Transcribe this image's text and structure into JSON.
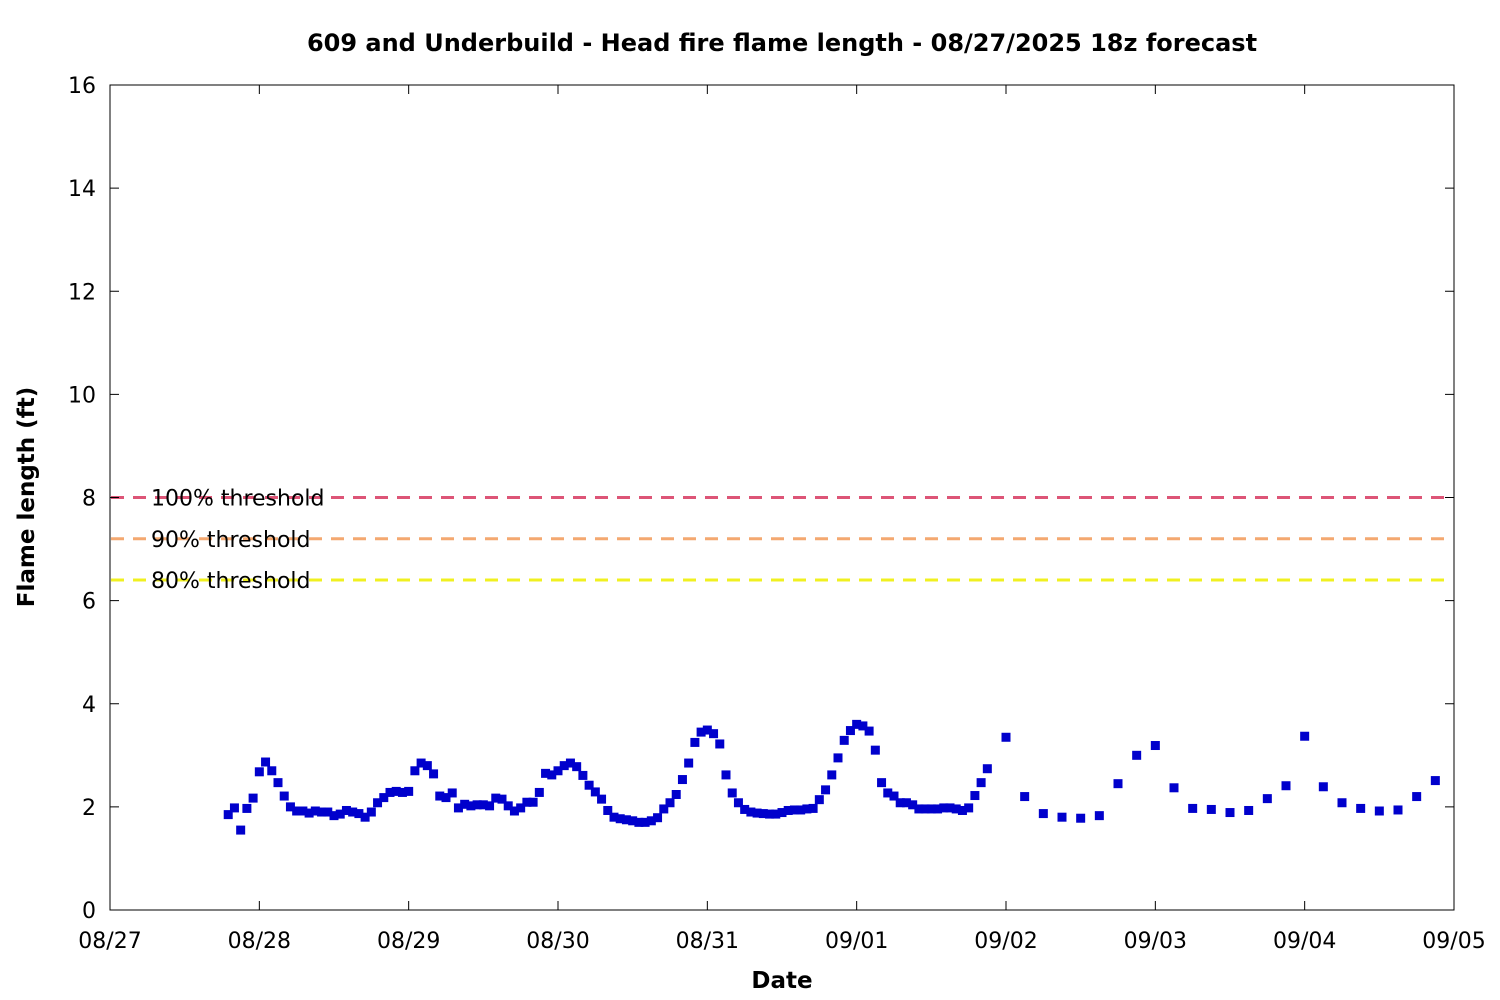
{
  "chart_data": {
    "type": "scatter",
    "title": "609 and Underbuild - Head fire flame length - 08/27/2025 18z forecast",
    "xlabel": "Date",
    "ylabel": "Flame length (ft)",
    "x_axis": {
      "kind": "date",
      "range": [
        "2025-08-27T00:00",
        "2025-09-05T00:00"
      ],
      "tick_labels": [
        "08/27",
        "08/28",
        "08/29",
        "08/30",
        "08/31",
        "09/01",
        "09/02",
        "09/03",
        "09/04",
        "09/05"
      ]
    },
    "ylim": [
      0,
      16
    ],
    "y_ticks": [
      0,
      2,
      4,
      6,
      8,
      10,
      12,
      14,
      16
    ],
    "grid": false,
    "marker_color": "#0000cc",
    "series": [
      {
        "points": [
          [
            "2025-08-27T19:00",
            1.85
          ],
          [
            "2025-08-27T20:00",
            1.98
          ],
          [
            "2025-08-27T21:00",
            1.55
          ],
          [
            "2025-08-27T22:00",
            1.97
          ],
          [
            "2025-08-27T23:00",
            2.17
          ],
          [
            "2025-08-28T00:00",
            2.68
          ],
          [
            "2025-08-28T01:00",
            2.87
          ],
          [
            "2025-08-28T02:00",
            2.7
          ],
          [
            "2025-08-28T03:00",
            2.47
          ],
          [
            "2025-08-28T04:00",
            2.21
          ],
          [
            "2025-08-28T05:00",
            2.0
          ],
          [
            "2025-08-28T06:00",
            1.92
          ],
          [
            "2025-08-28T07:00",
            1.92
          ],
          [
            "2025-08-28T08:00",
            1.88
          ],
          [
            "2025-08-28T09:00",
            1.92
          ],
          [
            "2025-08-28T10:00",
            1.9
          ],
          [
            "2025-08-28T11:00",
            1.9
          ],
          [
            "2025-08-28T12:00",
            1.83
          ],
          [
            "2025-08-28T13:00",
            1.86
          ],
          [
            "2025-08-28T14:00",
            1.93
          ],
          [
            "2025-08-28T15:00",
            1.9
          ],
          [
            "2025-08-28T16:00",
            1.87
          ],
          [
            "2025-08-28T17:00",
            1.8
          ],
          [
            "2025-08-28T18:00",
            1.9
          ],
          [
            "2025-08-28T19:00",
            2.08
          ],
          [
            "2025-08-28T20:00",
            2.18
          ],
          [
            "2025-08-28T21:00",
            2.28
          ],
          [
            "2025-08-28T22:00",
            2.3
          ],
          [
            "2025-08-28T23:00",
            2.28
          ],
          [
            "2025-08-29T00:00",
            2.3
          ],
          [
            "2025-08-29T01:00",
            2.7
          ],
          [
            "2025-08-29T02:00",
            2.85
          ],
          [
            "2025-08-29T03:00",
            2.8
          ],
          [
            "2025-08-29T04:00",
            2.64
          ],
          [
            "2025-08-29T05:00",
            2.21
          ],
          [
            "2025-08-29T06:00",
            2.18
          ],
          [
            "2025-08-29T07:00",
            2.27
          ],
          [
            "2025-08-29T08:00",
            1.98
          ],
          [
            "2025-08-29T09:00",
            2.05
          ],
          [
            "2025-08-29T10:00",
            2.02
          ],
          [
            "2025-08-29T11:00",
            2.04
          ],
          [
            "2025-08-29T12:00",
            2.04
          ],
          [
            "2025-08-29T13:00",
            2.02
          ],
          [
            "2025-08-29T14:00",
            2.17
          ],
          [
            "2025-08-29T15:00",
            2.15
          ],
          [
            "2025-08-29T16:00",
            2.02
          ],
          [
            "2025-08-29T17:00",
            1.92
          ],
          [
            "2025-08-29T18:00",
            1.98
          ],
          [
            "2025-08-29T19:00",
            2.09
          ],
          [
            "2025-08-29T20:00",
            2.09
          ],
          [
            "2025-08-29T21:00",
            2.28
          ],
          [
            "2025-08-29T22:00",
            2.65
          ],
          [
            "2025-08-29T23:00",
            2.62
          ],
          [
            "2025-08-30T00:00",
            2.7
          ],
          [
            "2025-08-30T01:00",
            2.8
          ],
          [
            "2025-08-30T02:00",
            2.85
          ],
          [
            "2025-08-30T03:00",
            2.78
          ],
          [
            "2025-08-30T04:00",
            2.61
          ],
          [
            "2025-08-30T05:00",
            2.42
          ],
          [
            "2025-08-30T06:00",
            2.29
          ],
          [
            "2025-08-30T07:00",
            2.15
          ],
          [
            "2025-08-30T08:00",
            1.93
          ],
          [
            "2025-08-30T09:00",
            1.8
          ],
          [
            "2025-08-30T10:00",
            1.77
          ],
          [
            "2025-08-30T11:00",
            1.75
          ],
          [
            "2025-08-30T12:00",
            1.73
          ],
          [
            "2025-08-30T13:00",
            1.7
          ],
          [
            "2025-08-30T14:00",
            1.7
          ],
          [
            "2025-08-30T15:00",
            1.73
          ],
          [
            "2025-08-30T16:00",
            1.79
          ],
          [
            "2025-08-30T17:00",
            1.96
          ],
          [
            "2025-08-30T18:00",
            2.08
          ],
          [
            "2025-08-30T19:00",
            2.24
          ],
          [
            "2025-08-30T20:00",
            2.53
          ],
          [
            "2025-08-30T21:00",
            2.85
          ],
          [
            "2025-08-30T22:00",
            3.25
          ],
          [
            "2025-08-30T23:00",
            3.45
          ],
          [
            "2025-08-31T00:00",
            3.49
          ],
          [
            "2025-08-31T01:00",
            3.42
          ],
          [
            "2025-08-31T02:00",
            3.22
          ],
          [
            "2025-08-31T03:00",
            2.62
          ],
          [
            "2025-08-31T04:00",
            2.27
          ],
          [
            "2025-08-31T05:00",
            2.08
          ],
          [
            "2025-08-31T06:00",
            1.95
          ],
          [
            "2025-08-31T07:00",
            1.9
          ],
          [
            "2025-08-31T08:00",
            1.88
          ],
          [
            "2025-08-31T09:00",
            1.87
          ],
          [
            "2025-08-31T10:00",
            1.86
          ],
          [
            "2025-08-31T11:00",
            1.86
          ],
          [
            "2025-08-31T12:00",
            1.89
          ],
          [
            "2025-08-31T13:00",
            1.93
          ],
          [
            "2025-08-31T14:00",
            1.94
          ],
          [
            "2025-08-31T15:00",
            1.94
          ],
          [
            "2025-08-31T16:00",
            1.96
          ],
          [
            "2025-08-31T17:00",
            1.97
          ],
          [
            "2025-08-31T18:00",
            2.14
          ],
          [
            "2025-08-31T19:00",
            2.33
          ],
          [
            "2025-08-31T20:00",
            2.62
          ],
          [
            "2025-08-31T21:00",
            2.95
          ],
          [
            "2025-08-31T22:00",
            3.29
          ],
          [
            "2025-08-31T23:00",
            3.48
          ],
          [
            "2025-09-01T00:00",
            3.6
          ],
          [
            "2025-09-01T01:00",
            3.57
          ],
          [
            "2025-09-01T02:00",
            3.47
          ],
          [
            "2025-09-01T03:00",
            3.1
          ],
          [
            "2025-09-01T04:00",
            2.47
          ],
          [
            "2025-09-01T05:00",
            2.27
          ],
          [
            "2025-09-01T06:00",
            2.21
          ],
          [
            "2025-09-01T07:00",
            2.08
          ],
          [
            "2025-09-01T08:00",
            2.08
          ],
          [
            "2025-09-01T09:00",
            2.04
          ],
          [
            "2025-09-01T10:00",
            1.96
          ],
          [
            "2025-09-01T11:00",
            1.96
          ],
          [
            "2025-09-01T12:00",
            1.96
          ],
          [
            "2025-09-01T13:00",
            1.96
          ],
          [
            "2025-09-01T14:00",
            1.98
          ],
          [
            "2025-09-01T15:00",
            1.98
          ],
          [
            "2025-09-01T16:00",
            1.96
          ],
          [
            "2025-09-01T17:00",
            1.93
          ],
          [
            "2025-09-01T18:00",
            1.98
          ],
          [
            "2025-09-01T19:00",
            2.22
          ],
          [
            "2025-09-01T20:00",
            2.47
          ],
          [
            "2025-09-01T21:00",
            2.74
          ],
          [
            "2025-09-02T00:00",
            3.35
          ],
          [
            "2025-09-02T03:00",
            2.2
          ],
          [
            "2025-09-02T06:00",
            1.87
          ],
          [
            "2025-09-02T09:00",
            1.8
          ],
          [
            "2025-09-02T12:00",
            1.78
          ],
          [
            "2025-09-02T15:00",
            1.83
          ],
          [
            "2025-09-02T18:00",
            2.45
          ],
          [
            "2025-09-02T21:00",
            3.0
          ],
          [
            "2025-09-03T00:00",
            3.19
          ],
          [
            "2025-09-03T03:00",
            2.37
          ],
          [
            "2025-09-03T06:00",
            1.97
          ],
          [
            "2025-09-03T09:00",
            1.95
          ],
          [
            "2025-09-03T12:00",
            1.89
          ],
          [
            "2025-09-03T15:00",
            1.93
          ],
          [
            "2025-09-03T18:00",
            2.16
          ],
          [
            "2025-09-03T21:00",
            2.41
          ],
          [
            "2025-09-04T00:00",
            3.37
          ],
          [
            "2025-09-04T03:00",
            2.39
          ],
          [
            "2025-09-04T06:00",
            2.08
          ],
          [
            "2025-09-04T09:00",
            1.97
          ],
          [
            "2025-09-04T12:00",
            1.92
          ],
          [
            "2025-09-04T15:00",
            1.94
          ],
          [
            "2025-09-04T18:00",
            2.2
          ],
          [
            "2025-09-04T21:00",
            2.51
          ]
        ]
      }
    ],
    "thresholds": [
      {
        "label": "100% threshold",
        "value": 8.0,
        "color": "#dd5577"
      },
      {
        "label": "90% threshold",
        "value": 7.2,
        "color": "#f4a870"
      },
      {
        "label": "80% threshold",
        "value": 6.4,
        "color": "#f0f020"
      }
    ]
  }
}
